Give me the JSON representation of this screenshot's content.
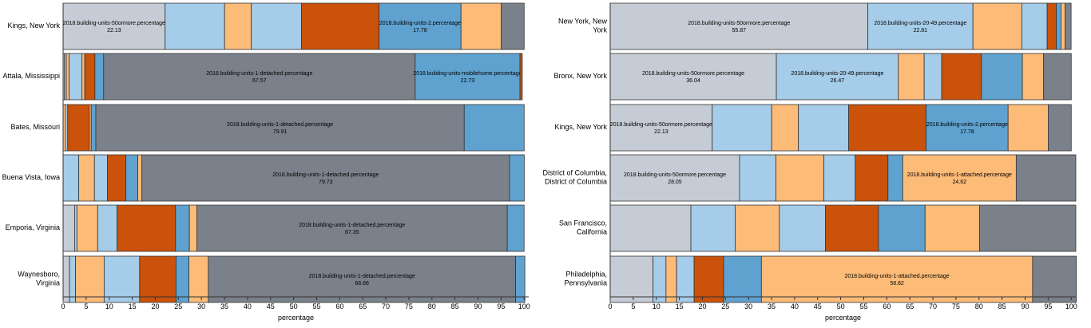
{
  "colors": {
    "1-detached": "#7b818b",
    "1-attached": "#fdbb78",
    "2": "#5fa2d0",
    "3-4": "#ca520a",
    "5-9": "#a5cce8",
    "10-19": "#fdbb78",
    "20-49": "#a5cce8",
    "50ormore": "#c6ccd5",
    "mobilehome": "#5fa2d0",
    "boat-rv-van-etc": "#ca520a",
    "bar_stroke": "#333333",
    "axis": "#333333",
    "text": "#000000"
  },
  "chart_data": [
    {
      "type": "bar",
      "orientation": "horizontal",
      "stacked": true,
      "xlabel": "percentage",
      "xlim": [
        0,
        101
      ],
      "xticks": [
        0,
        5,
        10,
        15,
        20,
        25,
        30,
        35,
        40,
        45,
        50,
        55,
        60,
        65,
        70,
        75,
        80,
        85,
        90,
        95,
        100
      ],
      "categories": [
        "Kings, New York",
        "Attala, Mississippi",
        "Bates, Missouri",
        "Buena Vista, Iowa",
        "Emporia, Virginia",
        "Waynesboro, Virginia"
      ],
      "rows": [
        {
          "label": [
            "Kings, New York"
          ],
          "segments": [
            {
              "key": "50ormore",
              "value": 22.13,
              "label": "2018.building-units-50ormore.percentage",
              "value_label": "22.13"
            },
            {
              "key": "20-49",
              "value": 12.9
            },
            {
              "key": "10-19",
              "value": 5.8
            },
            {
              "key": "5-9",
              "value": 10.9
            },
            {
              "key": "3-4",
              "value": 16.8
            },
            {
              "key": "2",
              "value": 17.78,
              "label": "2018.building-units-2.percentage",
              "value_label": "17.78"
            },
            {
              "key": "1-attached",
              "value": 8.7
            },
            {
              "key": "1-detached",
              "value": 5.0
            }
          ]
        },
        {
          "label": [
            "Attala, Mississippi"
          ],
          "segments": [
            {
              "key": "50ormore",
              "value": 0.3
            },
            {
              "key": "20-49",
              "value": 0.4
            },
            {
              "key": "10-19",
              "value": 0.6
            },
            {
              "key": "5-9",
              "value": 2.8
            },
            {
              "key": "1-attached",
              "value": 0.6
            },
            {
              "key": "3-4",
              "value": 2.2
            },
            {
              "key": "2",
              "value": 1.9
            },
            {
              "key": "1-detached",
              "value": 67.57,
              "label": "2018.building-units-1-detached.percentage",
              "value_label": "67.57"
            },
            {
              "key": "mobilehome",
              "value": 22.73,
              "label": "2018.building-units-mobilehome.percentage",
              "value_label": "22.73"
            },
            {
              "key": "boat-rv-van-etc",
              "value": 0.5
            }
          ]
        },
        {
          "label": [
            "Bates, Missouri"
          ],
          "segments": [
            {
              "key": "10-19",
              "value": 0.5
            },
            {
              "key": "5-9",
              "value": 0.5
            },
            {
              "key": "3-4",
              "value": 4.7
            },
            {
              "key": "1-attached",
              "value": 0.4
            },
            {
              "key": "2",
              "value": 1.0
            },
            {
              "key": "1-detached",
              "value": 79.91,
              "label": "2018.building-units-1-detached.percentage",
              "value_label": "79.91"
            },
            {
              "key": "mobilehome",
              "value": 13.0
            }
          ]
        },
        {
          "label": [
            "Buena Vista, Iowa"
          ],
          "segments": [
            {
              "key": "20-49",
              "value": 3.4
            },
            {
              "key": "10-19",
              "value": 3.4
            },
            {
              "key": "5-9",
              "value": 2.8
            },
            {
              "key": "3-4",
              "value": 4.0
            },
            {
              "key": "2",
              "value": 2.6
            },
            {
              "key": "1-attached",
              "value": 0.9
            },
            {
              "key": "1-detached",
              "value": 79.73,
              "label": "2018.building-units-1-detached.percentage",
              "value_label": "79.73"
            },
            {
              "key": "mobilehome",
              "value": 3.2
            }
          ]
        },
        {
          "label": [
            "Emporia, Virginia"
          ],
          "segments": [
            {
              "key": "50ormore",
              "value": 2.5
            },
            {
              "key": "20-49",
              "value": 0.5
            },
            {
              "key": "10-19",
              "value": 4.5
            },
            {
              "key": "5-9",
              "value": 4.2
            },
            {
              "key": "3-4",
              "value": 12.7
            },
            {
              "key": "2",
              "value": 3.0
            },
            {
              "key": "1-attached",
              "value": 1.6
            },
            {
              "key": "1-detached",
              "value": 67.35,
              "label": "2018.building-units-1-detached.percentage",
              "value_label": "67.35"
            },
            {
              "key": "mobilehome",
              "value": 3.65
            }
          ]
        },
        {
          "label": [
            "Waynesboro,",
            "Virginia"
          ],
          "segments": [
            {
              "key": "50ormore",
              "value": 1.4
            },
            {
              "key": "20-49",
              "value": 1.3
            },
            {
              "key": "10-19",
              "value": 6.2
            },
            {
              "key": "5-9",
              "value": 7.7
            },
            {
              "key": "3-4",
              "value": 7.9
            },
            {
              "key": "2",
              "value": 2.8
            },
            {
              "key": "1-attached",
              "value": 4.2
            },
            {
              "key": "1-detached",
              "value": 66.66,
              "label": "2018.building-units-1-detached.percentage",
              "value_label": "66.66"
            },
            {
              "key": "mobilehome",
              "value": 2.0
            }
          ]
        }
      ]
    },
    {
      "type": "bar",
      "orientation": "horizontal",
      "stacked": true,
      "xlabel": "percentage",
      "xlim": [
        0,
        101
      ],
      "xticks": [
        0,
        5,
        10,
        15,
        20,
        25,
        30,
        35,
        40,
        45,
        50,
        55,
        60,
        65,
        70,
        75,
        80,
        85,
        90,
        95,
        100
      ],
      "categories": [
        "New York, New York",
        "Bronx, New York",
        "Kings, New York",
        "District of Columbia, District of Columbia",
        "San Francisco, California",
        "Philadelphia, Pennsylvania"
      ],
      "rows": [
        {
          "label": [
            "New York, New",
            "York"
          ],
          "segments": [
            {
              "key": "50ormore",
              "value": 55.87,
              "label": "2018.building-units-50ormore.percentage",
              "value_label": "55.87"
            },
            {
              "key": "20-49",
              "value": 22.81,
              "label": "2018.building-units-20-49.percentage",
              "value_label": "22.81"
            },
            {
              "key": "10-19",
              "value": 10.6
            },
            {
              "key": "5-9",
              "value": 5.5
            },
            {
              "key": "3-4",
              "value": 2.0
            },
            {
              "key": "2",
              "value": 1.0
            },
            {
              "key": "1-attached",
              "value": 0.9
            },
            {
              "key": "1-detached",
              "value": 1.3
            }
          ]
        },
        {
          "label": [
            "Bronx, New York"
          ],
          "segments": [
            {
              "key": "50ormore",
              "value": 36.04,
              "label": "2018.building-units-50ormore.percentage",
              "value_label": "36.04"
            },
            {
              "key": "20-49",
              "value": 26.47,
              "label": "2018.building-units-20-49.percentage",
              "value_label": "26.47"
            },
            {
              "key": "10-19",
              "value": 5.6
            },
            {
              "key": "5-9",
              "value": 3.8
            },
            {
              "key": "3-4",
              "value": 8.6
            },
            {
              "key": "2",
              "value": 8.9
            },
            {
              "key": "1-attached",
              "value": 4.6
            },
            {
              "key": "1-detached",
              "value": 6.0
            }
          ]
        },
        {
          "label": [
            "Kings, New York"
          ],
          "segments": [
            {
              "key": "50ormore",
              "value": 22.13,
              "label": "2018.building-units-50ormore.percentage",
              "value_label": "22.13"
            },
            {
              "key": "20-49",
              "value": 12.9
            },
            {
              "key": "10-19",
              "value": 5.8
            },
            {
              "key": "5-9",
              "value": 10.9
            },
            {
              "key": "3-4",
              "value": 16.8
            },
            {
              "key": "2",
              "value": 17.78,
              "label": "2018.building-units-2.percentage",
              "value_label": "17.78"
            },
            {
              "key": "1-attached",
              "value": 8.7
            },
            {
              "key": "1-detached",
              "value": 5.0
            }
          ]
        },
        {
          "label": [
            "District of Columbia,",
            "District of Columbia"
          ],
          "segments": [
            {
              "key": "50ormore",
              "value": 28.05,
              "label": "2018.building-units-50ormore.percentage",
              "value_label": "28.05"
            },
            {
              "key": "20-49",
              "value": 7.9
            },
            {
              "key": "10-19",
              "value": 10.4
            },
            {
              "key": "5-9",
              "value": 6.8
            },
            {
              "key": "3-4",
              "value": 7.1
            },
            {
              "key": "2",
              "value": 3.2
            },
            {
              "key": "1-attached",
              "value": 24.62,
              "label": "2018.building-units-1-attached.percentage",
              "value_label": "24.62"
            },
            {
              "key": "1-detached",
              "value": 12.93
            }
          ]
        },
        {
          "label": [
            "San Francisco,",
            "California"
          ],
          "segments": [
            {
              "key": "50ormore",
              "value": 17.5
            },
            {
              "key": "20-49",
              "value": 9.6
            },
            {
              "key": "10-19",
              "value": 9.6
            },
            {
              "key": "5-9",
              "value": 10.0
            },
            {
              "key": "3-4",
              "value": 11.5
            },
            {
              "key": "2",
              "value": 10.1
            },
            {
              "key": "1-attached",
              "value": 11.8
            },
            {
              "key": "1-detached",
              "value": 20.9
            }
          ]
        },
        {
          "label": [
            "Philadelphia,",
            "Pennsylvania"
          ],
          "segments": [
            {
              "key": "50ormore",
              "value": 9.3
            },
            {
              "key": "20-49",
              "value": 2.8
            },
            {
              "key": "10-19",
              "value": 2.3
            },
            {
              "key": "5-9",
              "value": 3.8
            },
            {
              "key": "3-4",
              "value": 6.4
            },
            {
              "key": "2",
              "value": 8.2
            },
            {
              "key": "1-attached",
              "value": 58.82,
              "label": "2018.building-units-1-attached.percentage",
              "value_label": "58.82"
            },
            {
              "key": "1-detached",
              "value": 9.5
            }
          ]
        }
      ]
    }
  ]
}
